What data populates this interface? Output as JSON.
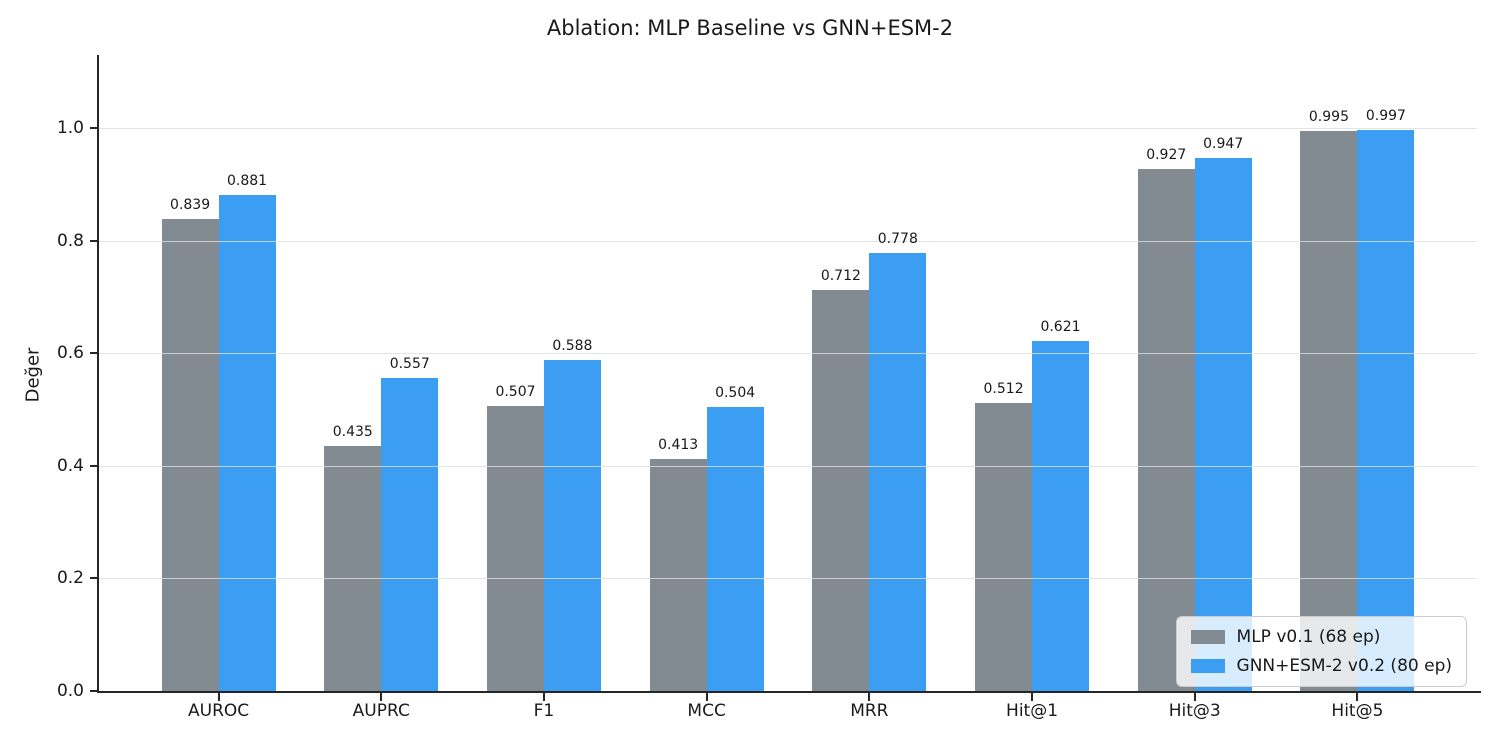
{
  "chart_data": {
    "type": "bar",
    "title": "Ablation: MLP Baseline vs GNN+ESM-2",
    "ylabel": "Değer",
    "xlabel": "",
    "categories": [
      "AUROC",
      "AUPRC",
      "F1",
      "MCC",
      "MRR",
      "Hit@1",
      "Hit@3",
      "Hit@5"
    ],
    "series": [
      {
        "name": "MLP v0.1 (68 ep)",
        "color": "#828A92",
        "values": [
          0.839,
          0.435,
          0.507,
          0.413,
          0.712,
          0.512,
          0.927,
          0.995
        ]
      },
      {
        "name": "GNN+ESM-2 v0.2 (80 ep)",
        "color": "#3B9EF2",
        "values": [
          0.881,
          0.557,
          0.588,
          0.504,
          0.778,
          0.621,
          0.947,
          0.997
        ]
      }
    ],
    "ylim": [
      0,
      1.13
    ],
    "yticks": [
      0.0,
      0.2,
      0.4,
      0.6,
      0.8,
      1.0
    ],
    "grid": true,
    "legend_position": "lower right",
    "value_labels_decimals": 3
  },
  "colors": {
    "background": "#ffffff",
    "grid": "#e0e0e0",
    "spine": "#262626",
    "text": "#1a1a1a",
    "legend_border": "#cccccc"
  }
}
